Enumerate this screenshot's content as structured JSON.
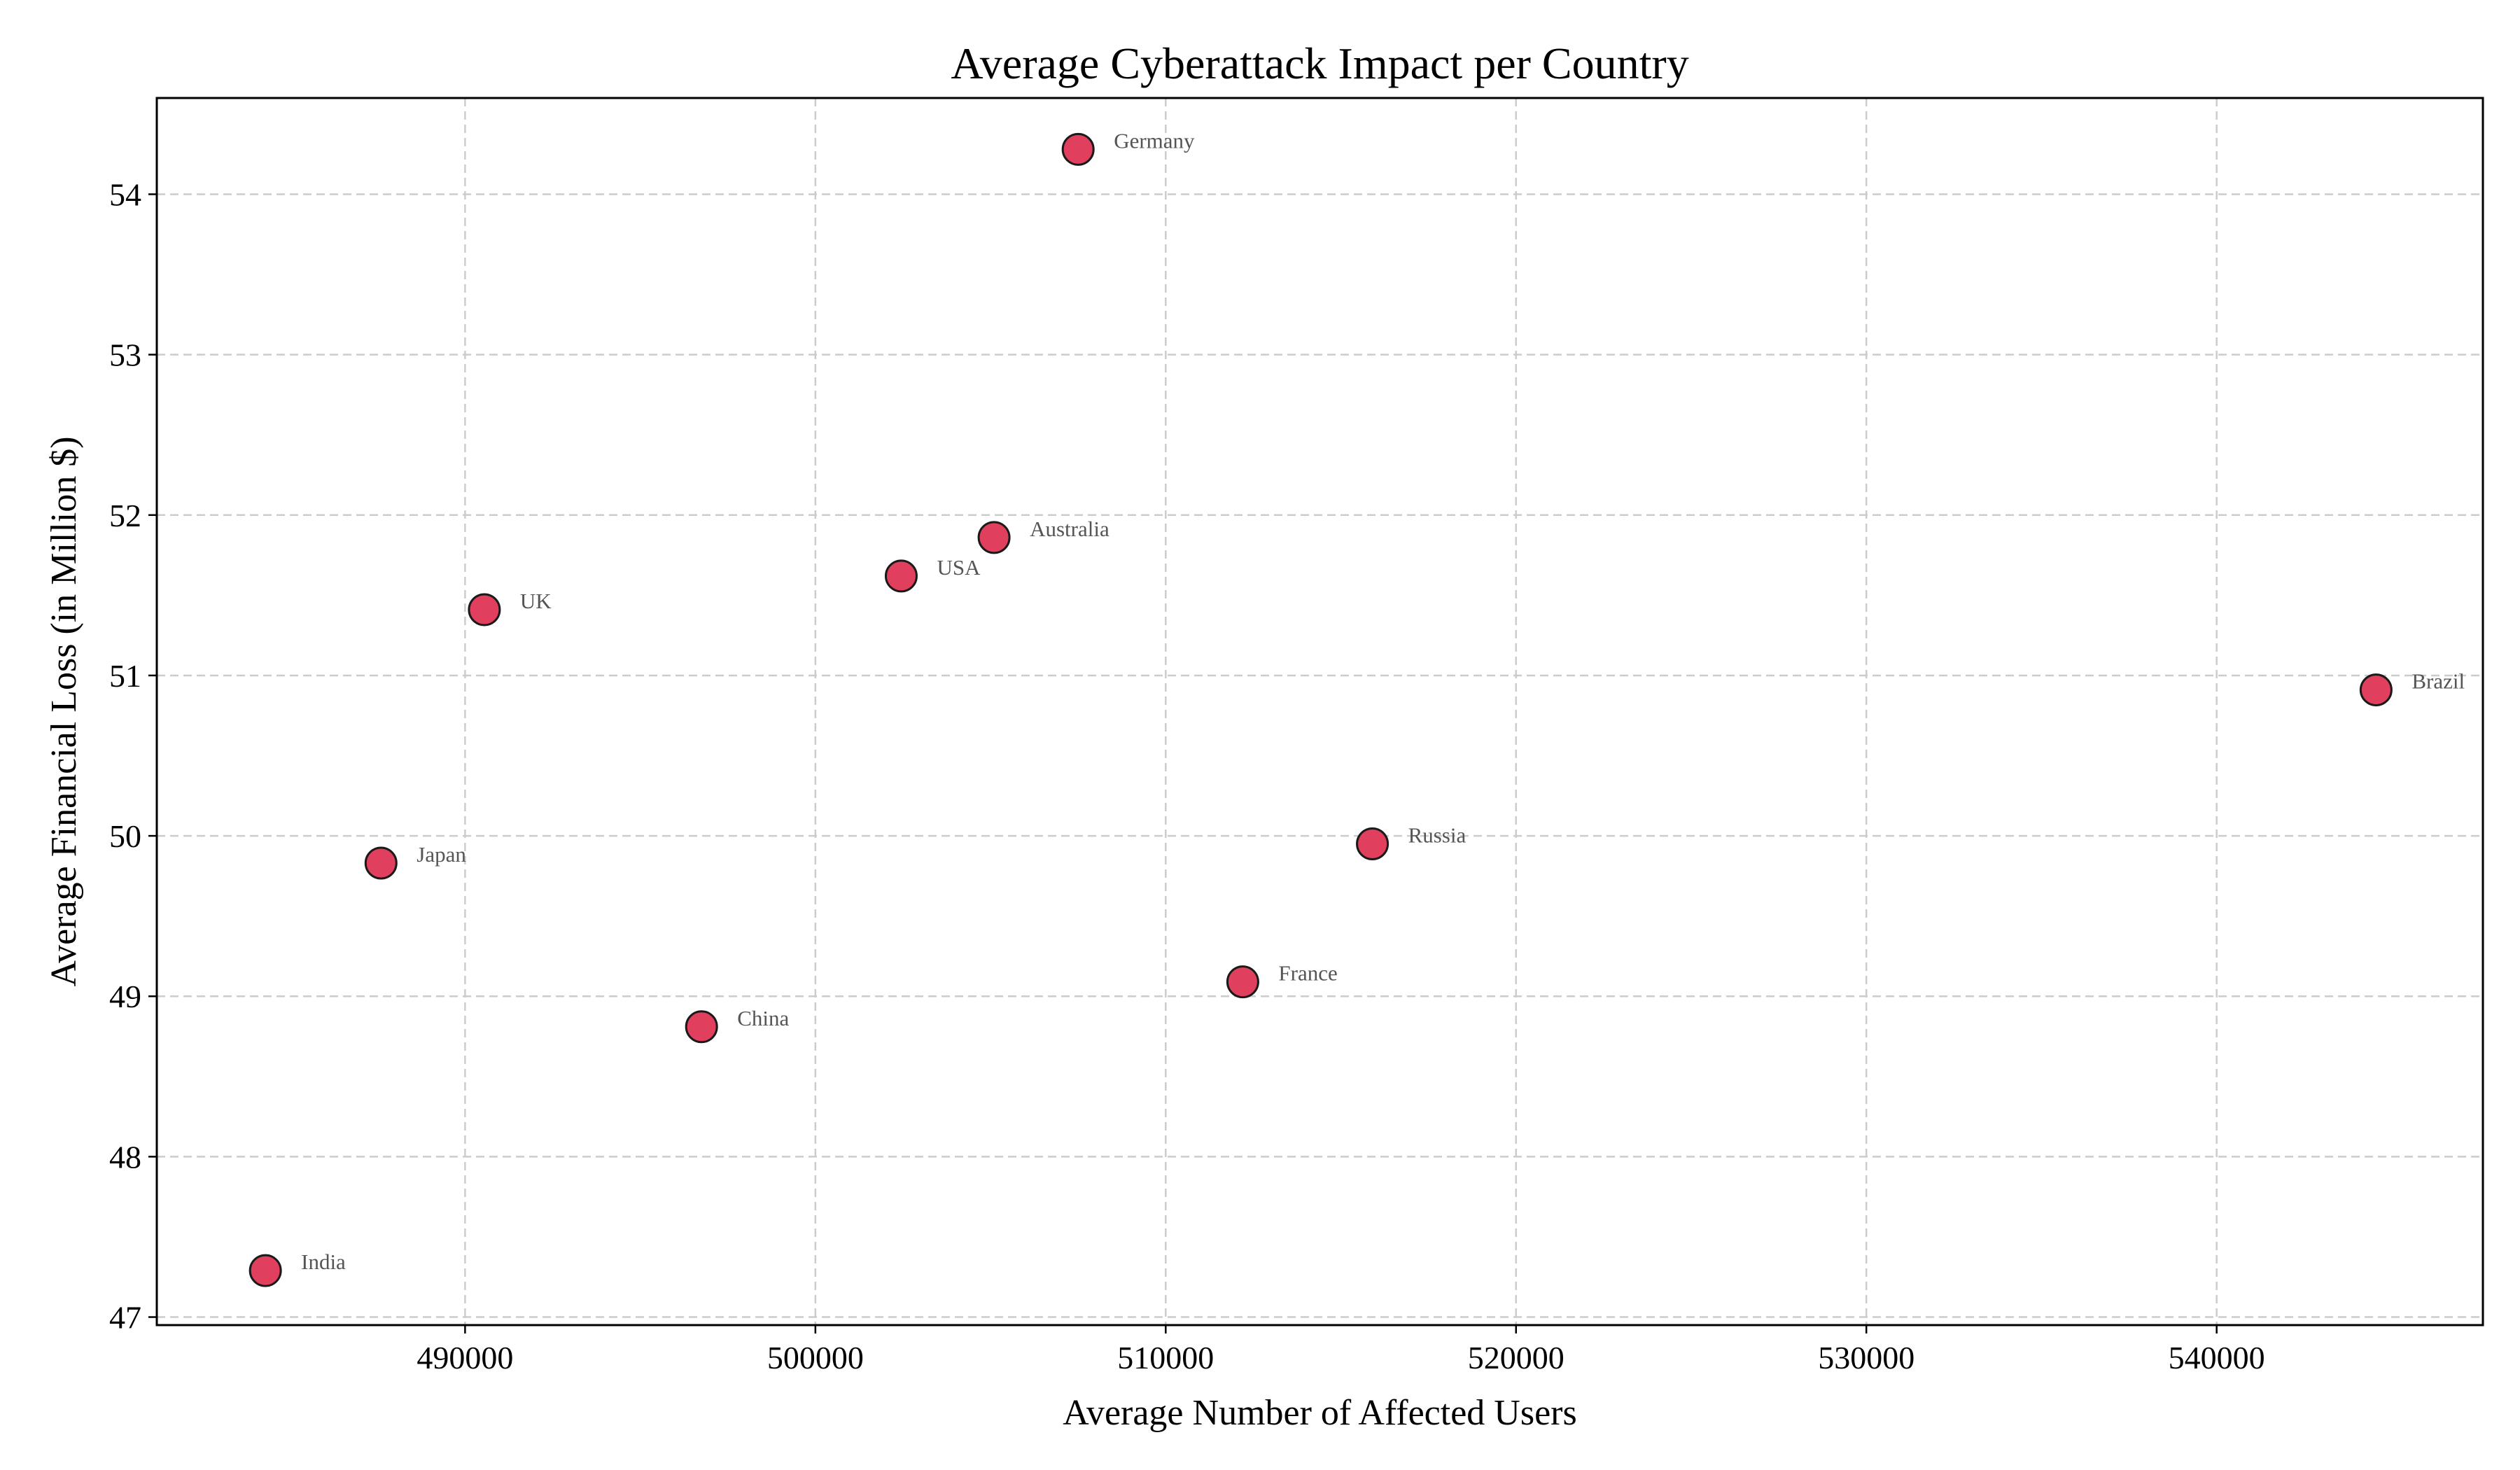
{
  "chart_data": {
    "type": "scatter",
    "title": "Average Cyberattack Impact per Country",
    "xlabel": "Average Number of Affected Users",
    "ylabel": "Average Financial Loss (in Million $)",
    "xlim": [
      481200,
      547600
    ],
    "ylim": [
      46.95,
      54.6
    ],
    "xticks": [
      490000,
      500000,
      510000,
      520000,
      530000,
      540000
    ],
    "yticks": [
      47,
      48,
      49,
      50,
      51,
      52,
      53,
      54
    ],
    "grid": true,
    "marker_color": "#e0405e",
    "marker_edge_color": "#1a1a1a",
    "points": [
      {
        "label": "Germany",
        "x": 507500,
        "y": 54.28
      },
      {
        "label": "Australia",
        "x": 505100,
        "y": 51.86
      },
      {
        "label": "USA",
        "x": 502450,
        "y": 51.62
      },
      {
        "label": "UK",
        "x": 490550,
        "y": 51.41
      },
      {
        "label": "Brazil",
        "x": 544550,
        "y": 50.91
      },
      {
        "label": "Russia",
        "x": 515900,
        "y": 49.95
      },
      {
        "label": "Japan",
        "x": 487600,
        "y": 49.83
      },
      {
        "label": "France",
        "x": 512200,
        "y": 49.09
      },
      {
        "label": "China",
        "x": 496750,
        "y": 48.81
      },
      {
        "label": "India",
        "x": 484300,
        "y": 47.29
      }
    ]
  }
}
